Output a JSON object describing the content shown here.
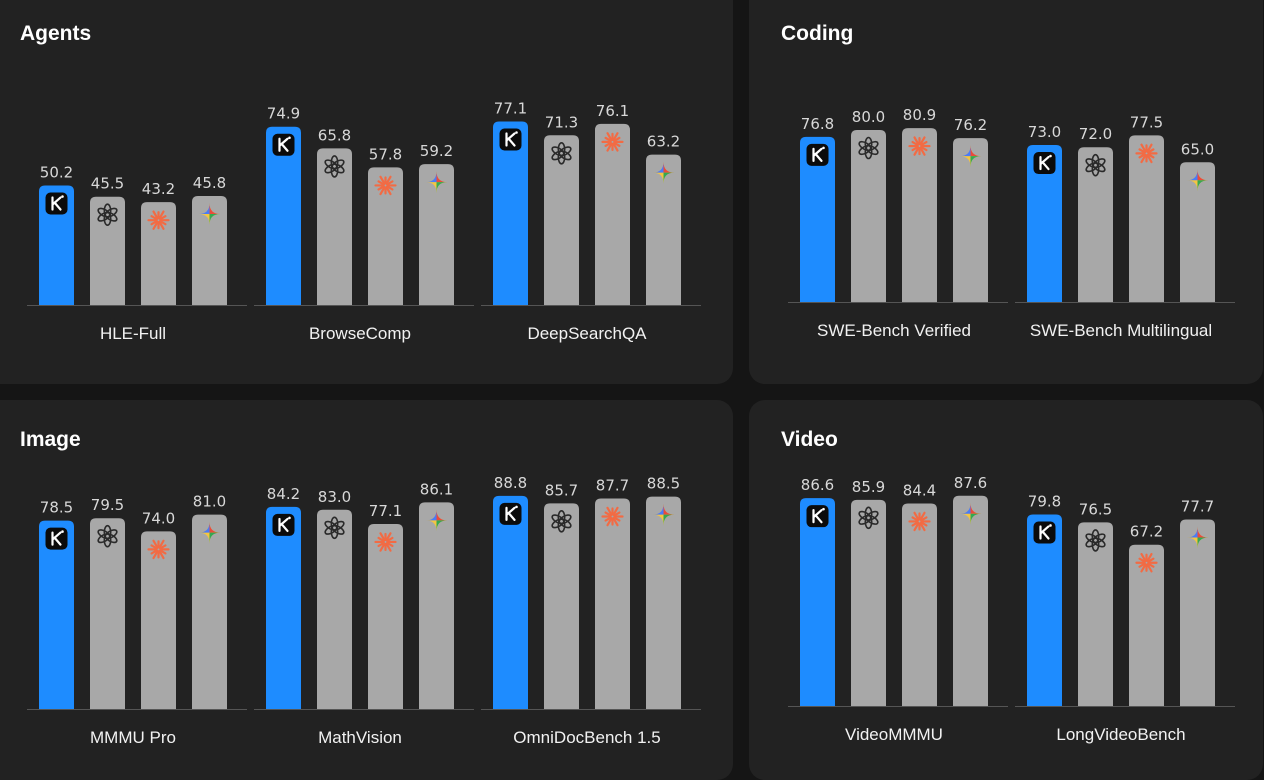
{
  "colors": {
    "background": "#151515",
    "panel": "#222222",
    "highlight_bar": "#1e8cff",
    "other_bar": "#a8a8a8",
    "axis": "#555555"
  },
  "series_icons": [
    "kimi-logo-icon",
    "openai-logo-icon",
    "claude-logo-icon",
    "gemini-logo-icon"
  ],
  "chart_data": [
    {
      "type": "bar",
      "title": "Agents",
      "categories": [
        "HLE-Full",
        "BrowseComp",
        "DeepSearchQA"
      ],
      "series": [
        {
          "values": [
            50.2,
            74.9,
            77.1
          ]
        },
        {
          "values": [
            45.5,
            65.8,
            71.3
          ]
        },
        {
          "values": [
            43.2,
            57.8,
            76.1
          ]
        },
        {
          "values": [
            45.8,
            59.2,
            63.2
          ]
        }
      ]
    },
    {
      "type": "bar",
      "title": "Coding",
      "categories": [
        "SWE-Bench Verified",
        "SWE-Bench Multilingual"
      ],
      "series": [
        {
          "values": [
            76.8,
            73.0
          ]
        },
        {
          "values": [
            80.0,
            72.0
          ]
        },
        {
          "values": [
            80.9,
            77.5
          ]
        },
        {
          "values": [
            76.2,
            65.0
          ]
        }
      ]
    },
    {
      "type": "bar",
      "title": "Image",
      "categories": [
        "MMMU Pro",
        "MathVision",
        "OmniDocBench 1.5"
      ],
      "series": [
        {
          "values": [
            78.5,
            84.2,
            88.8
          ]
        },
        {
          "values": [
            79.5,
            83.0,
            85.7
          ]
        },
        {
          "values": [
            74.0,
            77.1,
            87.7
          ]
        },
        {
          "values": [
            81.0,
            86.1,
            88.5
          ]
        }
      ]
    },
    {
      "type": "bar",
      "title": "Video",
      "categories": [
        "VideoMMMU",
        "LongVideoBench"
      ],
      "series": [
        {
          "values": [
            86.6,
            79.8
          ]
        },
        {
          "values": [
            85.9,
            76.5
          ]
        },
        {
          "values": [
            84.4,
            67.2
          ]
        },
        {
          "values": [
            87.6,
            77.7
          ]
        }
      ]
    }
  ]
}
